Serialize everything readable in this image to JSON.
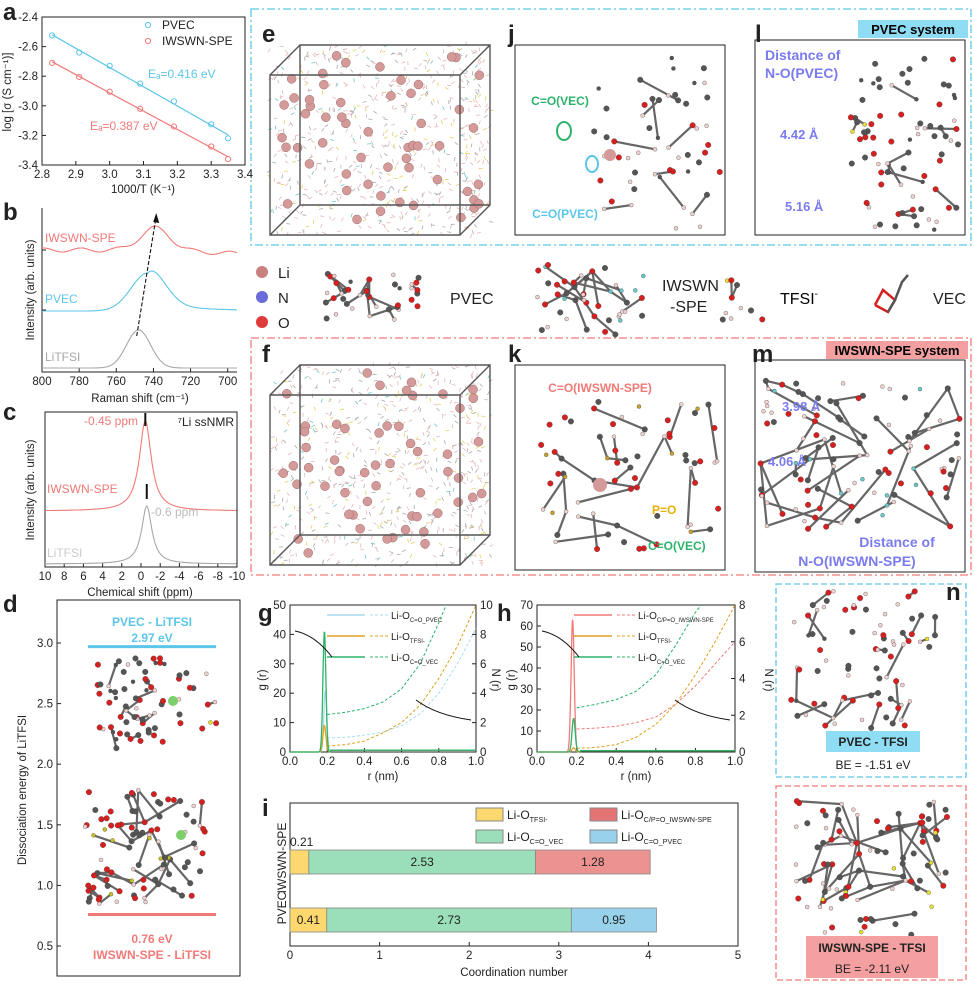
{
  "panels": {
    "a": "a",
    "b": "b",
    "c": "c",
    "d": "d",
    "e": "e",
    "f": "f",
    "g": "g",
    "h": "h",
    "i": "i",
    "j": "j",
    "k": "k",
    "l": "l",
    "m": "m",
    "n": "n"
  },
  "colors": {
    "pvec": "#5cc6e8",
    "iwswn": "#f07a78",
    "litfsi": "#a8a8a8",
    "tfsi": "#e0a020",
    "vec": "#2db36b",
    "pvec_light": "#a9dcef",
    "bar_tfsi": "#fdd86e",
    "bar_vec": "#9adfb9",
    "bar_iwswn": "#ec9290",
    "bar_pvec": "#97d2ea",
    "annot_blue": "#7b7bf0"
  },
  "chart_data": [
    {
      "id": "a",
      "type": "scatter",
      "xlabel": "1000/T (K⁻¹)",
      "ylabel": "log [σ (S cm⁻¹)]",
      "xlim": [
        2.8,
        3.4
      ],
      "ylim": [
        -3.4,
        -2.4
      ],
      "xticks": [
        "2.8",
        "2.9",
        "3.0",
        "3.1",
        "3.2",
        "3.3",
        "3.4"
      ],
      "yticks": [
        "-2.4",
        "-2.6",
        "-2.8",
        "-3.0",
        "-3.2",
        "-3.4"
      ],
      "legend": "top-right",
      "series": [
        {
          "name": "PVEC",
          "x": [
            2.83,
            2.91,
            3.0,
            3.09,
            3.19,
            3.3,
            3.35
          ],
          "y": [
            -2.525,
            -2.64,
            -2.73,
            -2.85,
            -2.97,
            -3.125,
            -3.22
          ],
          "annotation": "Eₐ=0.416 eV"
        },
        {
          "name": "IWSWN-SPE",
          "x": [
            2.83,
            2.91,
            3.0,
            3.09,
            3.19,
            3.3,
            3.35
          ],
          "y": [
            -2.71,
            -2.805,
            -2.905,
            -3.02,
            -3.14,
            -3.275,
            -3.36
          ],
          "annotation": "Eₐ=0.387 eV"
        }
      ]
    },
    {
      "id": "b",
      "type": "line",
      "xlabel": "Raman shift (cm⁻¹)",
      "ylabel": "Intensity (arb. units)",
      "xlim": [
        800,
        695
      ],
      "xticks": [
        "800",
        "780",
        "760",
        "740",
        "720",
        "700"
      ],
      "series": [
        {
          "name": "IWSWN-SPE",
          "peak": 739
        },
        {
          "name": "PVEC",
          "peak": 743
        },
        {
          "name": "LiTFSI",
          "peak": 748
        }
      ]
    },
    {
      "id": "c",
      "type": "line",
      "xlabel": "Chemical shift (ppm)",
      "ylabel": "Intensity (arb. units)",
      "title": "⁷Li ssNMR",
      "xlim": [
        10,
        -10
      ],
      "xticks": [
        "10",
        "8",
        "6",
        "4",
        "2",
        "0",
        "-2",
        "-4",
        "-6",
        "-8",
        "-10"
      ],
      "series": [
        {
          "name": "IWSWN-SPE",
          "peak": -0.45,
          "annotation": "-0.45 ppm"
        },
        {
          "name": "LiTFSI",
          "peak": -0.6,
          "annotation": "-0.6 ppm"
        }
      ]
    },
    {
      "id": "d",
      "type": "bar",
      "ylabel": "Dissociation energy of LiTFSI",
      "ylim": [
        0.3,
        3.3
      ],
      "yticks": [
        "0.5",
        "1.0",
        "1.5",
        "2.0",
        "2.5",
        "3.0"
      ],
      "levels": [
        {
          "name": "PVEC - LiTFSI",
          "value": 2.97,
          "label": "2.97 eV"
        },
        {
          "name": "IWSWN-SPE - LiTFSI",
          "value": 0.76,
          "label": "0.76 eV"
        }
      ]
    },
    {
      "id": "g",
      "type": "line",
      "xlabel": "r (nm)",
      "ylabel": "g (r)",
      "y2label": "N (r)",
      "xlim": [
        0,
        1
      ],
      "ylim": [
        0,
        50
      ],
      "y2lim": [
        0,
        10
      ],
      "xticks": [
        "0.0",
        "0.2",
        "0.4",
        "0.6",
        "0.8",
        "1.0"
      ],
      "yticks": [
        "0",
        "10",
        "20",
        "30",
        "40",
        "50"
      ],
      "y2ticks": [
        "0",
        "2",
        "4",
        "6",
        "8",
        "10"
      ],
      "series": [
        {
          "name": "Li-O",
          "sub": "C=O_PVEC",
          "g_peak": [
            0.19,
            21
          ],
          "N_r": [
            0.2,
            0.3,
            0.4,
            0.5,
            0.6,
            0.7,
            0.8,
            0.9,
            1.0
          ],
          "N": [
            0.95,
            1.0,
            1.15,
            1.35,
            1.8,
            2.6,
            4.0,
            6.0,
            8.4
          ]
        },
        {
          "name": "Li-O",
          "sub": "TFSI-",
          "g_peak": [
            0.185,
            9
          ],
          "N_r": [
            0.2,
            0.3,
            0.4,
            0.5,
            0.6,
            0.7,
            0.8,
            0.9,
            1.0
          ],
          "N": [
            0.4,
            0.5,
            0.75,
            1.3,
            2.0,
            3.2,
            5.0,
            7.2,
            10
          ]
        },
        {
          "name": "Li-O",
          "sub": "C=O_VEC",
          "g_peak": [
            0.185,
            41
          ],
          "N_r": [
            0.2,
            0.3,
            0.4,
            0.5,
            0.6,
            0.7,
            0.8,
            0.84
          ],
          "N": [
            2.55,
            2.7,
            2.95,
            3.4,
            4.3,
            6.0,
            8.8,
            10
          ]
        }
      ]
    },
    {
      "id": "h",
      "type": "line",
      "xlabel": "r (nm)",
      "ylabel": "g (r)",
      "y2label": "N (r)",
      "xlim": [
        0,
        1
      ],
      "ylim": [
        0,
        70
      ],
      "y2lim": [
        0,
        8
      ],
      "xticks": [
        "0.0",
        "0.2",
        "0.4",
        "0.6",
        "0.8",
        "1.0"
      ],
      "yticks": [
        "0",
        "10",
        "20",
        "30",
        "40",
        "50",
        "60",
        "70"
      ],
      "y2ticks": [
        "0",
        "2",
        "4",
        "6",
        "8"
      ],
      "series": [
        {
          "name": "Li-O",
          "sub": "C/P=O_IWSWN-SPE",
          "g_peak": [
            0.18,
            63
          ],
          "N_r": [
            0.2,
            0.3,
            0.4,
            0.5,
            0.6,
            0.7,
            0.8,
            0.9,
            1.0
          ],
          "N": [
            1.25,
            1.3,
            1.4,
            1.6,
            1.9,
            2.6,
            3.6,
            4.8,
            6.0
          ]
        },
        {
          "name": "Li-O",
          "sub": "TFSI-",
          "g_peak": [
            0.185,
            2
          ],
          "N_r": [
            0.2,
            0.3,
            0.4,
            0.5,
            0.6,
            0.7,
            0.8,
            0.9,
            1.0
          ],
          "N": [
            0.2,
            0.25,
            0.4,
            0.8,
            1.5,
            2.6,
            4.2,
            6.0,
            8.0
          ]
        },
        {
          "name": "Li-O",
          "sub": "C=O_VEC",
          "g_peak": [
            0.185,
            16
          ],
          "N_r": [
            0.2,
            0.3,
            0.4,
            0.5,
            0.6,
            0.7,
            0.8,
            0.83
          ],
          "N": [
            2.4,
            2.6,
            2.85,
            3.3,
            4.2,
            5.8,
            7.6,
            8.0
          ]
        }
      ]
    },
    {
      "id": "i",
      "type": "bar",
      "orientation": "horizontal-stacked",
      "xlabel": "Coordination number",
      "xlim": [
        0,
        5
      ],
      "xticks": [
        "0",
        "1",
        "2",
        "3",
        "4",
        "5"
      ],
      "categories": [
        "IWSWN-SPE",
        "PVEC"
      ],
      "legend": "top-right",
      "legend_items": [
        {
          "name": "Li-O",
          "sub": "TFSI-"
        },
        {
          "name": "Li-O",
          "sub": "C/P=O_IWSWN-SPE"
        },
        {
          "name": "Li-O",
          "sub": "C=O_VEC"
        },
        {
          "name": "Li-O",
          "sub": "C=O_PVEC"
        }
      ],
      "rows": [
        {
          "category": "IWSWN-SPE",
          "segments": [
            {
              "series": "TFSI-",
              "value": 0.21,
              "label": "0.21"
            },
            {
              "series": "C=O_VEC",
              "value": 2.53,
              "label": "2.53"
            },
            {
              "series": "C/P=O_IWSWN-SPE",
              "value": 1.28,
              "label": "1.28"
            }
          ]
        },
        {
          "category": "PVEC",
          "segments": [
            {
              "series": "TFSI-",
              "value": 0.41,
              "label": "0.41"
            },
            {
              "series": "C=O_VEC",
              "value": 2.73,
              "label": "2.73"
            },
            {
              "series": "C=O_PVEC",
              "value": 0.95,
              "label": "0.95"
            }
          ]
        }
      ]
    }
  ],
  "systems": {
    "pvec": "PVEC system",
    "iwswn": "IWSWN-SPE system"
  },
  "j": {
    "label_vec": "C=O(VEC)",
    "label_pvec": "C=O(PVEC)"
  },
  "k": {
    "label_iwswn": "C=O(IWSWN-SPE)",
    "label_po": "P=O",
    "label_vec": "C=O(VEC)"
  },
  "l": {
    "title1": "Distance of",
    "title2": "N-O(PVEC)",
    "d1": "4.42 Å",
    "d2": "5.16 Å"
  },
  "m": {
    "title1": "Distance of",
    "title2": "N-O(IWSWN-SPE)",
    "d1": "3.98 Å",
    "d2": "4.06 Å"
  },
  "legend": {
    "atoms": [
      "Li",
      "N",
      "O"
    ],
    "pvec": "PVEC",
    "iwswn1": "IWSWN",
    "iwswn2": "-SPE",
    "tfsi": "TFSI",
    "tfsi_sup": "-",
    "vec": "VEC"
  },
  "n": {
    "top_title": "PVEC - TFSI",
    "top_be": "BE = -1.51 eV",
    "bottom_title": "IWSWN-SPE - TFSI",
    "bottom_be": "BE = -2.11 eV"
  }
}
